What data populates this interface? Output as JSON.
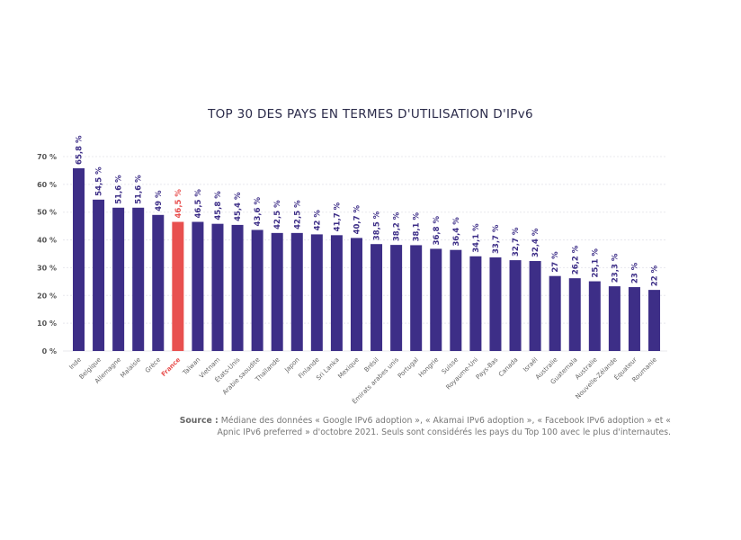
{
  "chart_data": {
    "type": "bar",
    "title": "TOP 30 DES PAYS EN TERMES D'UTILISATION D'IPv6",
    "categories": [
      "Inde",
      "Belgique",
      "Allemagne",
      "Malaisie",
      "Grèce",
      "France",
      "Taïwan",
      "Vietnam",
      "États-Unis",
      "Arabie saoudite",
      "Thaïlande",
      "Japon",
      "Finlande",
      "Sri Lanka",
      "Mexique",
      "Brésil",
      "Émirats arabes unis",
      "Portugal",
      "Hongrie",
      "Suisse",
      "Royaume-Uni",
      "Pays-Bas",
      "Canada",
      "Israël",
      "Australie",
      "Guatemala",
      "Australie",
      "Nouvelle-Zélande",
      "Équateur",
      "Roumanie"
    ],
    "values": [
      65.8,
      54.5,
      51.6,
      51.6,
      49,
      46.5,
      46.5,
      45.8,
      45.4,
      43.6,
      42.5,
      42.5,
      42,
      41.7,
      40.7,
      38.5,
      38.2,
      38.1,
      36.8,
      36.4,
      34.1,
      33.7,
      32.7,
      32.4,
      27,
      26.2,
      25.1,
      23.3,
      23,
      22
    ],
    "data_labels": [
      "65,8 %",
      "54,5 %",
      "51,6 %",
      "51,6 %",
      "49 %",
      "46,5 %",
      "46,5 %",
      "45,8 %",
      "45,4 %",
      "43,6 %",
      "42,5 %",
      "42,5 %",
      "42 %",
      "41,7 %",
      "40,7 %",
      "38,5 %",
      "38,2 %",
      "38,1 %",
      "36,8 %",
      "36,4 %",
      "34,1 %",
      "33,7 %",
      "32,7 %",
      "32,4 %",
      "27 %",
      "26,2 %",
      "25,1 %",
      "23,3 %",
      "23 %",
      "22 %"
    ],
    "highlight": "France",
    "yticks": [
      "0 %",
      "10 %",
      "20 %",
      "30 %",
      "40 %",
      "50 %",
      "60 %",
      "70 %"
    ],
    "ylim": [
      0,
      70
    ],
    "grid": true,
    "colors": {
      "bar": "#3d2e87",
      "highlight": "#e8504f",
      "label": "#3d2e87"
    }
  },
  "source": {
    "label": "Source :",
    "text": "Médiane des données « Google IPv6 adoption », « Akamai IPv6 adoption », « Facebook IPv6 adoption » et « Apnic IPv6 preferred » d'octobre 2021. Seuls sont considérés les pays du Top 100 avec le plus d'internautes."
  }
}
